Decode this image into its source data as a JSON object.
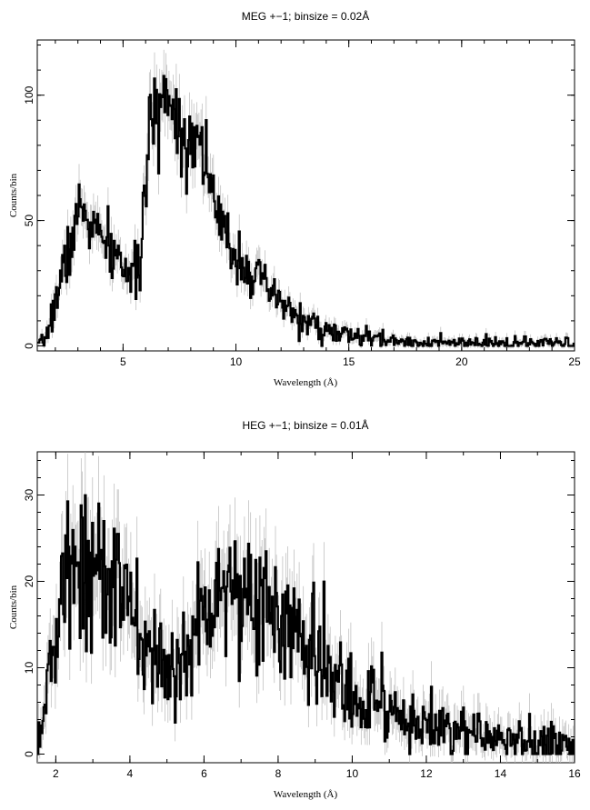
{
  "chart_data": [
    {
      "type": "line",
      "title": "MEG +−1; binsize = 0.02Å",
      "xlabel": "Wavelength (Å)",
      "ylabel": "Counts/bin",
      "xlim": [
        1.2,
        25
      ],
      "ylim": [
        -2,
        122
      ],
      "xticks": [
        5,
        10,
        15,
        20,
        25
      ],
      "yticks": [
        0,
        50,
        100
      ],
      "grid": false,
      "series": [
        {
          "style": "histogram-with-errorbars",
          "x": [
            1.2,
            1.5,
            1.8,
            2.0,
            2.2,
            2.5,
            2.8,
            3.0,
            3.2,
            3.5,
            3.8,
            4.0,
            4.3,
            4.6,
            5.0,
            5.3,
            5.6,
            5.8,
            6.0,
            6.2,
            6.4,
            6.6,
            6.8,
            7.0,
            7.2,
            7.4,
            7.6,
            7.8,
            8.0,
            8.2,
            8.4,
            8.6,
            8.8,
            9.0,
            9.3,
            9.6,
            10.0,
            10.5,
            11.0,
            11.5,
            12.0,
            12.5,
            13.0,
            13.5,
            14.0,
            15.0,
            16.0,
            17.0,
            18.0,
            19.0,
            20.0,
            22.0,
            24.0,
            25.0
          ],
          "y": [
            0,
            2,
            10,
            18,
            25,
            35,
            45,
            52,
            55,
            50,
            46,
            42,
            40,
            36,
            33,
            28,
            26,
            40,
            62,
            85,
            92,
            95,
            100,
            104,
            96,
            90,
            85,
            82,
            86,
            84,
            82,
            80,
            72,
            55,
            48,
            42,
            37,
            32,
            26,
            21,
            17,
            13,
            10,
            8,
            6,
            4,
            3,
            2,
            1.5,
            1.2,
            1,
            1,
            1,
            1
          ]
        }
      ]
    },
    {
      "type": "line",
      "title": "HEG +−1; binsize = 0.01Å",
      "xlabel": "Wavelength (Å)",
      "ylabel": "Counts/bin",
      "xlim": [
        1.5,
        16
      ],
      "ylim": [
        -1,
        35
      ],
      "xticks": [
        2,
        4,
        6,
        8,
        10,
        12,
        14,
        16
      ],
      "yticks": [
        0,
        10,
        20,
        30
      ],
      "grid": false,
      "series": [
        {
          "style": "histogram-with-errorbars",
          "x": [
            1.5,
            1.7,
            1.9,
            2.1,
            2.3,
            2.5,
            2.8,
            3.0,
            3.3,
            3.6,
            3.9,
            4.2,
            4.5,
            4.8,
            5.0,
            5.3,
            5.6,
            5.9,
            6.2,
            6.5,
            6.8,
            7.0,
            7.3,
            7.6,
            8.0,
            8.4,
            8.8,
            9.2,
            9.6,
            10.0,
            10.5,
            11.0,
            11.5,
            12.0,
            12.5,
            13.0,
            13.5,
            14.0,
            14.5,
            15.0,
            15.5,
            16.0
          ],
          "y": [
            2,
            6,
            11,
            16,
            20,
            22,
            23,
            22,
            21,
            19,
            17,
            14,
            12,
            10,
            9,
            10,
            12,
            16,
            19,
            20,
            20,
            19,
            18,
            17,
            16,
            14,
            12,
            10,
            8,
            7,
            6,
            5,
            4,
            3.5,
            3,
            2.5,
            2,
            1.8,
            1.5,
            1.2,
            1,
            1
          ]
        }
      ]
    }
  ]
}
